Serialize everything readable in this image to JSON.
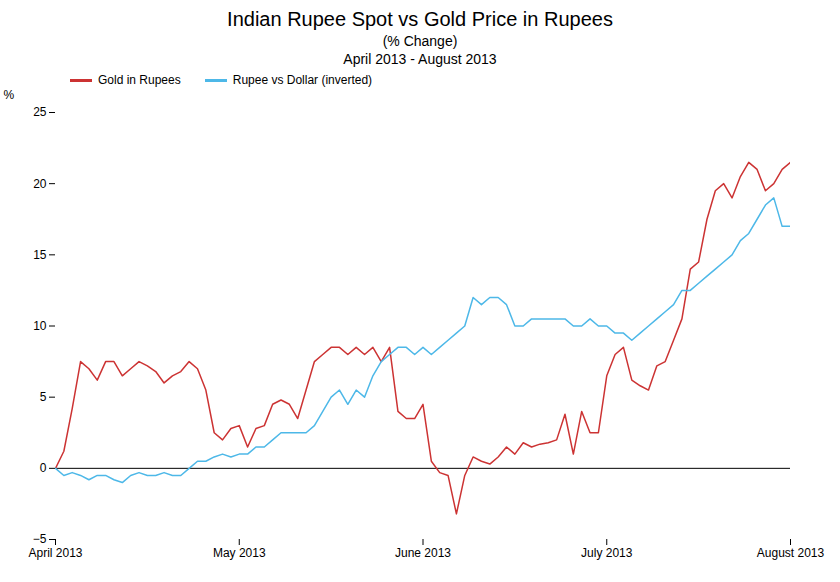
{
  "chart_data": {
    "type": "line",
    "title": "Indian Rupee Spot vs Gold Price in Rupees",
    "subtitle": [
      "(% Change)",
      "April 2013 - August 2013"
    ],
    "ylabel": "%",
    "x": [
      0,
      1,
      2,
      3,
      4,
      5,
      6,
      7,
      8,
      9,
      10,
      11,
      12,
      13,
      14,
      15,
      16,
      17,
      18,
      19,
      20,
      21,
      22,
      23,
      24,
      25,
      26,
      27,
      28,
      29,
      30,
      31,
      32,
      33,
      34,
      35,
      36,
      37,
      38,
      39,
      40,
      41,
      42,
      43,
      44,
      45,
      46,
      47,
      48,
      49,
      50,
      51,
      52,
      53,
      54,
      55,
      56,
      57,
      58,
      59,
      60,
      61,
      62,
      63,
      64,
      65,
      66,
      67,
      68,
      69,
      70,
      71,
      72,
      73,
      74,
      75,
      76,
      77,
      78,
      79,
      80,
      81,
      82,
      83,
      84,
      85,
      86,
      87,
      88
    ],
    "series": [
      {
        "name": "Gold in Rupees",
        "color": "#cc3333",
        "values": [
          0.0,
          1.2,
          4.2,
          7.5,
          7.0,
          6.2,
          7.5,
          7.5,
          6.5,
          7.0,
          7.5,
          7.2,
          6.8,
          6.0,
          6.5,
          6.8,
          7.5,
          7.0,
          5.5,
          2.5,
          2.0,
          2.8,
          3.0,
          1.5,
          2.8,
          3.0,
          4.5,
          4.8,
          4.5,
          3.5,
          5.5,
          7.5,
          8.0,
          8.5,
          8.5,
          8.0,
          8.5,
          8.0,
          8.5,
          7.5,
          8.5,
          4.0,
          3.5,
          3.5,
          4.5,
          0.5,
          -0.3,
          -0.5,
          -3.2,
          -0.5,
          0.8,
          0.5,
          0.3,
          0.8,
          1.5,
          1.0,
          1.8,
          1.5,
          1.7,
          1.8,
          2.0,
          3.8,
          1.0,
          4.0,
          2.5,
          2.5,
          6.5,
          8.0,
          8.5,
          6.2,
          5.8,
          5.5,
          7.2,
          7.5,
          9.0,
          10.5,
          14.0,
          14.5,
          17.5,
          19.5,
          20.0,
          19.0,
          20.5,
          21.5,
          21.0,
          19.5,
          20.0,
          21.0,
          21.5
        ]
      },
      {
        "name": "Rupee vs Dollar (inverted)",
        "color": "#4db8e8",
        "values": [
          0.0,
          -0.5,
          -0.3,
          -0.5,
          -0.8,
          -0.5,
          -0.5,
          -0.8,
          -1.0,
          -0.5,
          -0.3,
          -0.5,
          -0.5,
          -0.3,
          -0.5,
          -0.5,
          0.0,
          0.5,
          0.5,
          0.8,
          1.0,
          0.8,
          1.0,
          1.0,
          1.5,
          1.5,
          2.0,
          2.5,
          2.5,
          2.5,
          2.5,
          3.0,
          4.0,
          5.0,
          5.5,
          4.5,
          5.5,
          5.0,
          6.5,
          7.5,
          8.0,
          8.5,
          8.5,
          8.0,
          8.5,
          8.0,
          8.5,
          9.0,
          9.5,
          10.0,
          12.0,
          11.5,
          12.0,
          12.0,
          11.5,
          10.0,
          10.0,
          10.5,
          10.5,
          10.5,
          10.5,
          10.5,
          10.0,
          10.0,
          10.5,
          10.0,
          10.0,
          9.5,
          9.5,
          9.0,
          9.5,
          10.0,
          10.5,
          11.0,
          11.5,
          12.5,
          12.5,
          13.0,
          13.5,
          14.0,
          14.5,
          15.0,
          16.0,
          16.5,
          17.5,
          18.5,
          19.0,
          17.0,
          17.0
        ]
      }
    ],
    "xlim": [
      0,
      88
    ],
    "xticks": [
      {
        "value": 0,
        "label": "April 2013"
      },
      {
        "value": 22,
        "label": "May 2013"
      },
      {
        "value": 44,
        "label": "June 2013"
      },
      {
        "value": 66,
        "label": "July 2013"
      },
      {
        "value": 88,
        "label": "August 2013"
      }
    ],
    "ylim": [
      -5,
      25
    ],
    "yticks": [
      -5,
      0,
      5,
      10,
      15,
      20,
      25
    ],
    "hlines": [
      0
    ],
    "grid": false,
    "legend": "upper left"
  }
}
